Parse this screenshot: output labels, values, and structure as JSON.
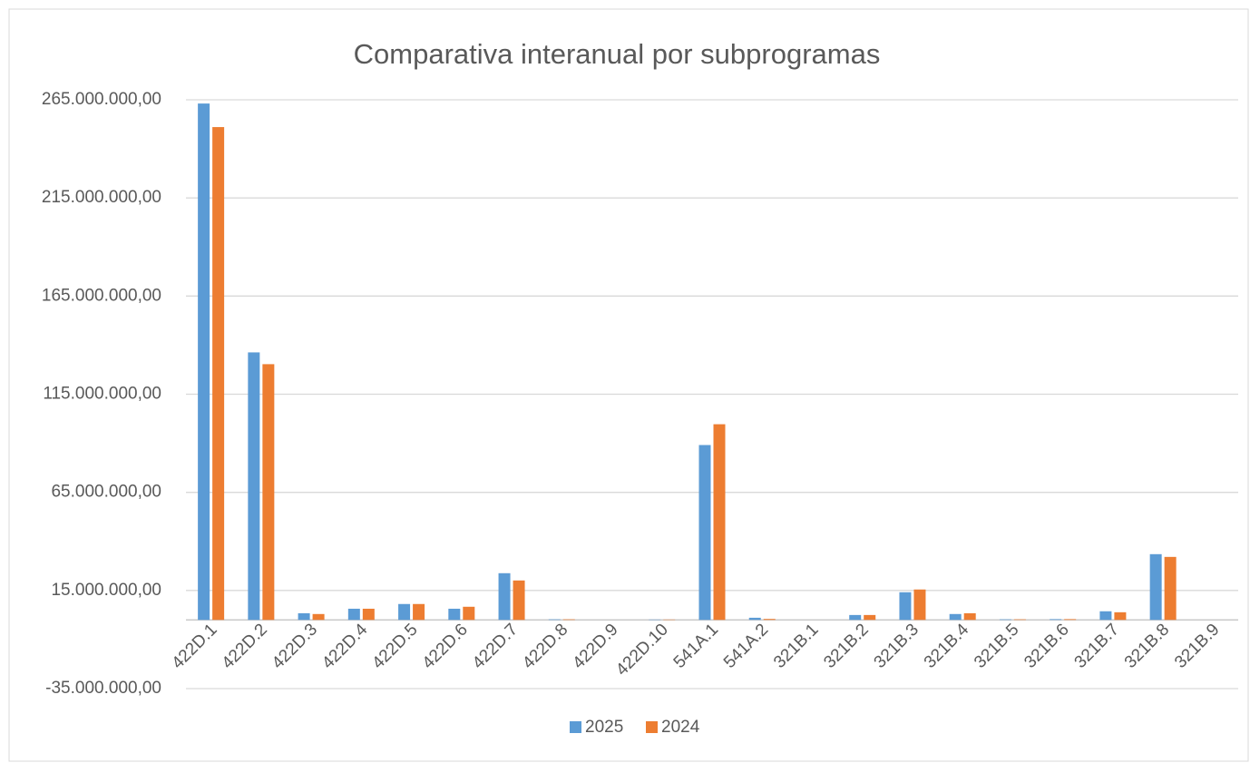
{
  "chart_data": {
    "type": "bar",
    "title": "Comparativa interanual por subprogramas",
    "categories": [
      "422D.1",
      "422D.2",
      "422D.3",
      "422D.4",
      "422D.5",
      "422D.6",
      "422D.7",
      "422D.8",
      "422D.9",
      "422D.10",
      "541A.1",
      "541A.2",
      "321B.1",
      "321B.2",
      "321B.3",
      "321B.4",
      "321B.5",
      "321B.6",
      "321B.7",
      "321B.8",
      "321B.9"
    ],
    "series": [
      {
        "name": "2025",
        "color": "#5b9bd5",
        "values": [
          263100000,
          136300000,
          3400000,
          5700000,
          8100000,
          5700000,
          23800000,
          300000,
          0,
          200000,
          89100000,
          1100000,
          0,
          2500000,
          14100000,
          3000000,
          300000,
          400000,
          4400000,
          33500000,
          0
        ]
      },
      {
        "name": "2024",
        "color": "#ed7d31",
        "values": [
          251100000,
          130300000,
          3000000,
          5700000,
          8100000,
          6700000,
          20100000,
          300000,
          0,
          200000,
          99700000,
          500000,
          0,
          2500000,
          15500000,
          3400000,
          300000,
          400000,
          3900000,
          32100000,
          0
        ]
      }
    ],
    "ylim": [
      -35000000,
      265000000
    ],
    "yticks": [
      {
        "value": -35000000,
        "label": "-35.000.000,00"
      },
      {
        "value": 15000000,
        "label": "15.000.000,00"
      },
      {
        "value": 65000000,
        "label": "65.000.000,00"
      },
      {
        "value": 115000000,
        "label": "115.000.000,00"
      },
      {
        "value": 165000000,
        "label": "165.000.000,00"
      },
      {
        "value": 215000000,
        "label": "215.000.000,00"
      },
      {
        "value": 265000000,
        "label": "265.000.000,00"
      }
    ],
    "grid": true,
    "legend": "bottom"
  }
}
